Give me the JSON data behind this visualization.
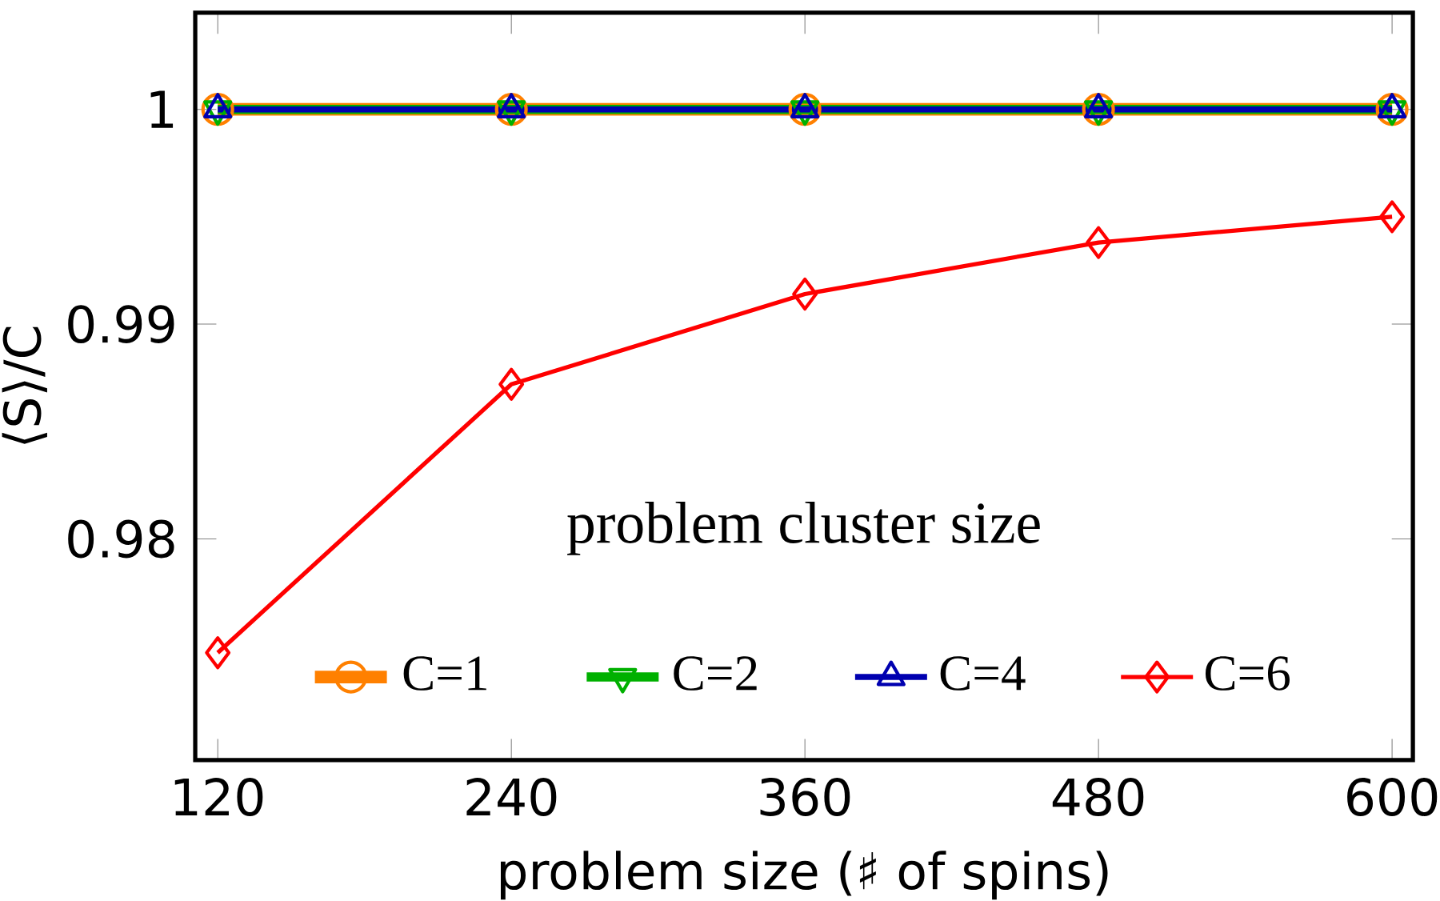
{
  "chart_data": {
    "type": "line",
    "xlabel": "problem size (♯ of spins)",
    "ylabel": "⟨S⟩/C",
    "legend_title": "problem cluster size",
    "x": [
      120,
      240,
      360,
      480,
      600
    ],
    "series": [
      {
        "name": "C=1",
        "color": "#ff8000",
        "marker": "circle",
        "values": [
          1,
          1,
          1,
          1,
          1
        ]
      },
      {
        "name": "C=2",
        "color": "#00b000",
        "marker": "triangle-down",
        "values": [
          1,
          1,
          1,
          1,
          1
        ]
      },
      {
        "name": "C=4",
        "color": "#0000b0",
        "marker": "triangle",
        "values": [
          1,
          1,
          1,
          1,
          1
        ]
      },
      {
        "name": "C=6",
        "color": "#ff0000",
        "marker": "diamond",
        "values": [
          0.9747,
          0.9872,
          0.9914,
          0.9938,
          0.995
        ]
      }
    ],
    "xlim": [
      110.8,
      608.5
    ],
    "ylim": [
      0.9697,
      1.0045
    ],
    "xticks": [
      120,
      240,
      360,
      480,
      600
    ],
    "yticks": [
      0.98,
      0.99,
      1
    ],
    "grid": false,
    "legend": "bottom",
    "line_style": "solid"
  }
}
